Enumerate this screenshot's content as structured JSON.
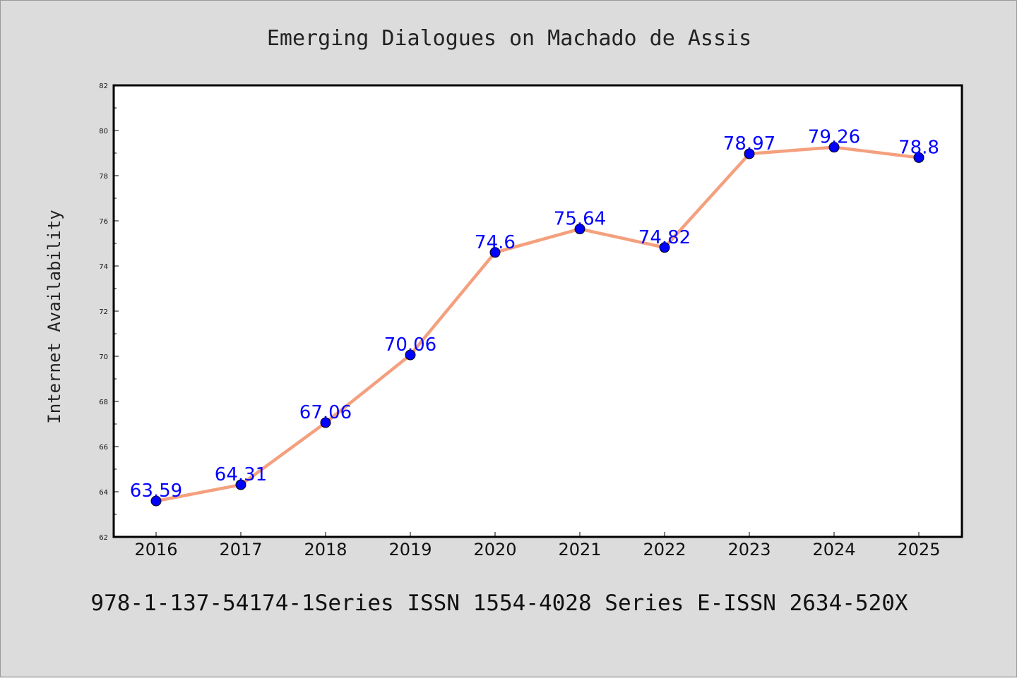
{
  "chart_data": {
    "type": "line",
    "title": "Emerging Dialogues on Machado de Assis",
    "xlabel": "",
    "ylabel": "Internet Availability",
    "x": [
      "2016",
      "2017",
      "2018",
      "2019",
      "2020",
      "2021",
      "2022",
      "2023",
      "2024",
      "2025"
    ],
    "series": [
      {
        "values": [
          63.59,
          64.31,
          67.06,
          70.06,
          74.6,
          75.64,
          74.82,
          78.97,
          79.26,
          78.8
        ],
        "labels": [
          "63.59",
          "64.31",
          "67.06",
          "70.06",
          "74.6",
          "75.64",
          "74.82",
          "78.97",
          "79.26",
          "78.8"
        ],
        "line_color": "#f4a07e",
        "marker_color": "#0000ff",
        "label_color": "#0000ff"
      }
    ],
    "ylim": [
      62,
      82
    ],
    "yticks": [
      "62",
      "64",
      "66",
      "68",
      "70",
      "72",
      "74",
      "76",
      "78",
      "80",
      "82"
    ],
    "grid": false,
    "legend": "none"
  },
  "footer": {
    "text": "978-1-137-54174-1Series ISSN 1554-4028 Series E-ISSN 2634-520X"
  },
  "colors": {
    "background": "#dcdcdc",
    "plot_background": "#ffffff"
  }
}
